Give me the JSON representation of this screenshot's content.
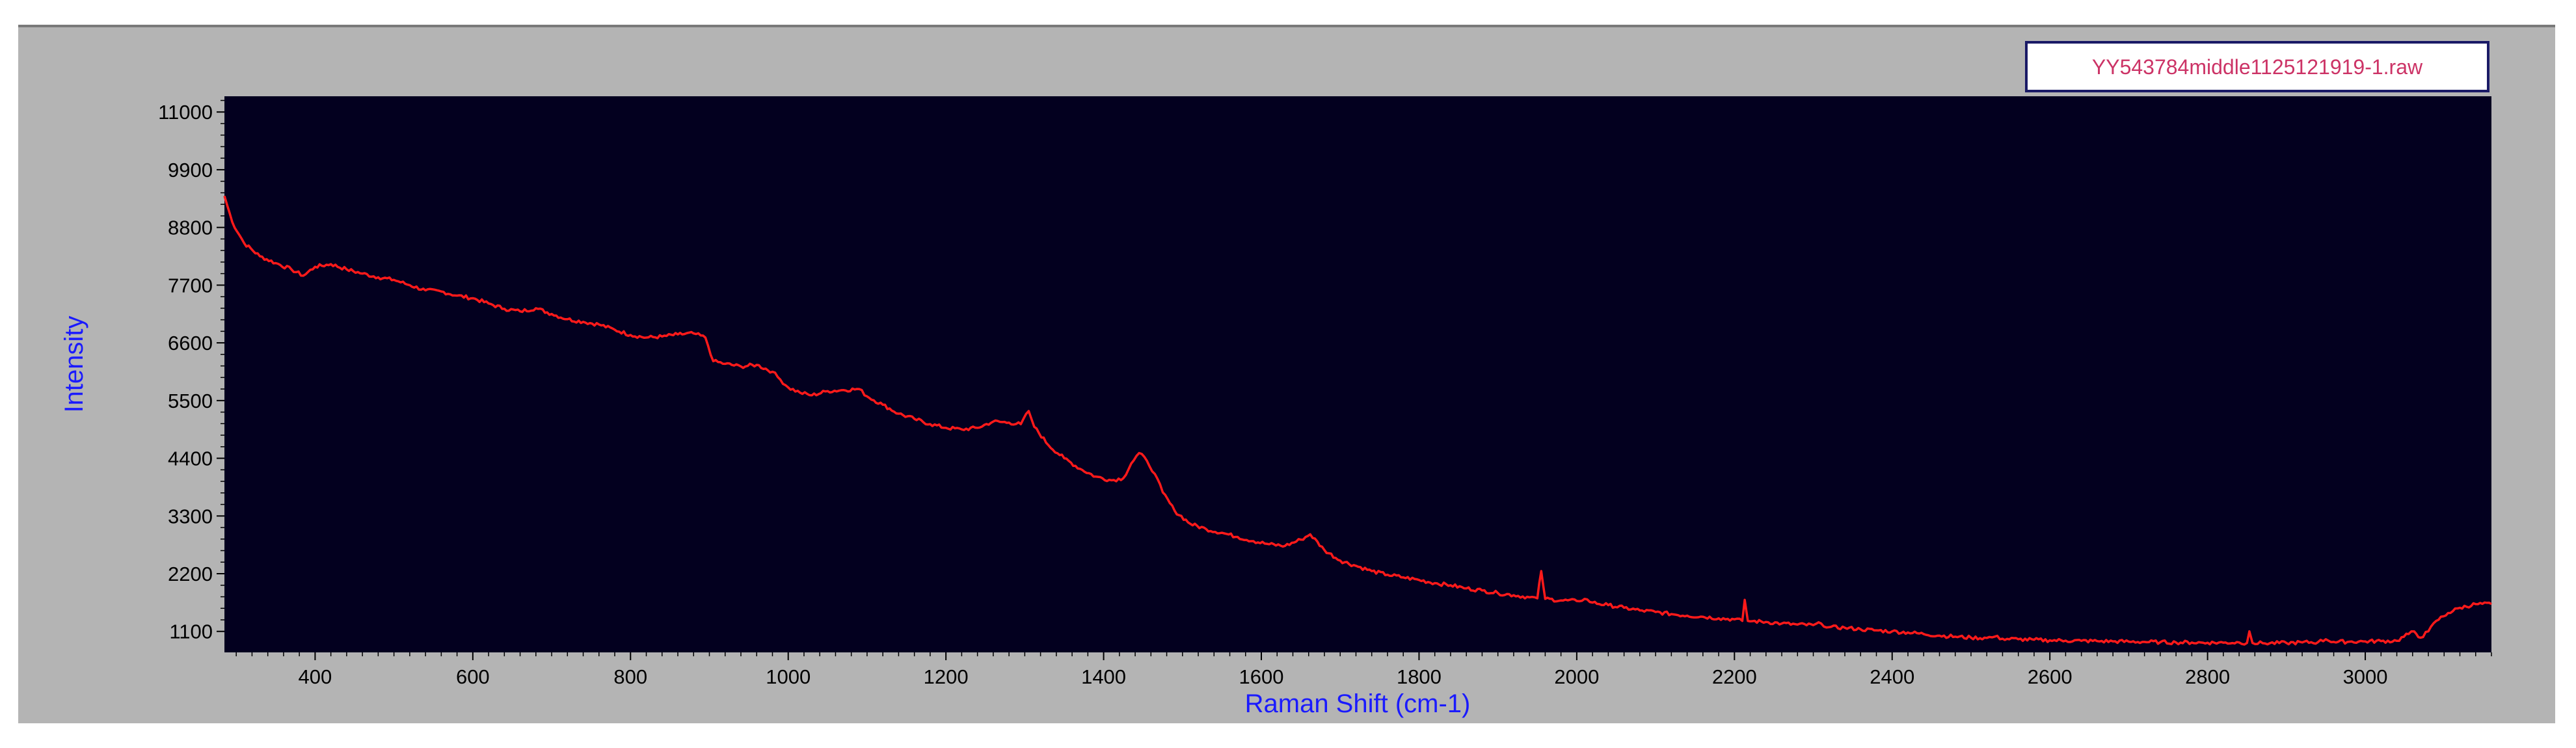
{
  "chart_data": {
    "type": "line",
    "xlabel": "Raman Shift (cm-1)",
    "ylabel": "Intensity",
    "xlim": [
      285,
      3160
    ],
    "ylim": [
      700,
      11300
    ],
    "x_ticks": [
      400,
      600,
      800,
      1000,
      1200,
      1400,
      1600,
      1800,
      2000,
      2200,
      2400,
      2600,
      2800,
      3000
    ],
    "y_ticks": [
      1100,
      2200,
      3300,
      4400,
      5500,
      6600,
      7700,
      8800,
      9900,
      11000
    ],
    "grid": false,
    "legend": "top-right",
    "colors": {
      "plot_background": "#03001f",
      "frame_background": "#b4b4b4",
      "line": "#ff1a1a",
      "axis_title": "#1a1aff",
      "legend_text": "#cc3366",
      "legend_border": "#1a1a66"
    },
    "series": [
      {
        "name": "YY543784middle1125121919-1.raw",
        "points": [
          [
            285,
            9400
          ],
          [
            295,
            8900
          ],
          [
            310,
            8500
          ],
          [
            330,
            8250
          ],
          [
            350,
            8120
          ],
          [
            370,
            8000
          ],
          [
            385,
            7880
          ],
          [
            400,
            8050
          ],
          [
            420,
            8100
          ],
          [
            440,
            8000
          ],
          [
            460,
            7920
          ],
          [
            480,
            7850
          ],
          [
            500,
            7800
          ],
          [
            520,
            7700
          ],
          [
            540,
            7600
          ],
          [
            560,
            7580
          ],
          [
            580,
            7500
          ],
          [
            600,
            7450
          ],
          [
            620,
            7350
          ],
          [
            640,
            7250
          ],
          [
            660,
            7200
          ],
          [
            680,
            7260
          ],
          [
            700,
            7150
          ],
          [
            720,
            7050
          ],
          [
            740,
            7000
          ],
          [
            760,
            6950
          ],
          [
            780,
            6850
          ],
          [
            800,
            6750
          ],
          [
            820,
            6700
          ],
          [
            840,
            6720
          ],
          [
            860,
            6760
          ],
          [
            880,
            6780
          ],
          [
            895,
            6700
          ],
          [
            905,
            6250
          ],
          [
            920,
            6200
          ],
          [
            940,
            6150
          ],
          [
            960,
            6180
          ],
          [
            980,
            6050
          ],
          [
            990,
            5900
          ],
          [
            1000,
            5750
          ],
          [
            1015,
            5650
          ],
          [
            1030,
            5600
          ],
          [
            1050,
            5680
          ],
          [
            1070,
            5700
          ],
          [
            1090,
            5720
          ],
          [
            1100,
            5580
          ],
          [
            1120,
            5420
          ],
          [
            1140,
            5250
          ],
          [
            1160,
            5150
          ],
          [
            1180,
            5050
          ],
          [
            1200,
            4980
          ],
          [
            1220,
            4950
          ],
          [
            1240,
            4980
          ],
          [
            1260,
            5100
          ],
          [
            1280,
            5080
          ],
          [
            1295,
            5050
          ],
          [
            1305,
            5300
          ],
          [
            1312,
            5000
          ],
          [
            1330,
            4650
          ],
          [
            1350,
            4400
          ],
          [
            1370,
            4200
          ],
          [
            1390,
            4050
          ],
          [
            1410,
            3980
          ],
          [
            1425,
            4020
          ],
          [
            1435,
            4300
          ],
          [
            1445,
            4500
          ],
          [
            1455,
            4350
          ],
          [
            1465,
            4100
          ],
          [
            1475,
            3750
          ],
          [
            1490,
            3400
          ],
          [
            1510,
            3150
          ],
          [
            1530,
            3050
          ],
          [
            1550,
            2980
          ],
          [
            1570,
            2900
          ],
          [
            1590,
            2820
          ],
          [
            1610,
            2760
          ],
          [
            1630,
            2730
          ],
          [
            1650,
            2850
          ],
          [
            1662,
            2950
          ],
          [
            1680,
            2650
          ],
          [
            1700,
            2450
          ],
          [
            1720,
            2350
          ],
          [
            1740,
            2250
          ],
          [
            1760,
            2180
          ],
          [
            1780,
            2130
          ],
          [
            1800,
            2080
          ],
          [
            1820,
            2020
          ],
          [
            1840,
            1980
          ],
          [
            1860,
            1920
          ],
          [
            1880,
            1880
          ],
          [
            1900,
            1830
          ],
          [
            1920,
            1790
          ],
          [
            1940,
            1750
          ],
          [
            1950,
            1730
          ],
          [
            1955,
            2250
          ],
          [
            1960,
            1720
          ],
          [
            1980,
            1690
          ],
          [
            2000,
            1680
          ],
          [
            2010,
            1720
          ],
          [
            2020,
            1650
          ],
          [
            2040,
            1600
          ],
          [
            2060,
            1550
          ],
          [
            2080,
            1500
          ],
          [
            2100,
            1470
          ],
          [
            2120,
            1430
          ],
          [
            2140,
            1400
          ],
          [
            2160,
            1380
          ],
          [
            2180,
            1350
          ],
          [
            2200,
            1330
          ],
          [
            2210,
            1300
          ],
          [
            2213,
            1700
          ],
          [
            2217,
            1300
          ],
          [
            2240,
            1280
          ],
          [
            2260,
            1250
          ],
          [
            2280,
            1230
          ],
          [
            2300,
            1220
          ],
          [
            2310,
            1250
          ],
          [
            2320,
            1180
          ],
          [
            2340,
            1170
          ],
          [
            2360,
            1140
          ],
          [
            2380,
            1120
          ],
          [
            2400,
            1100
          ],
          [
            2420,
            1080
          ],
          [
            2440,
            1050
          ],
          [
            2460,
            1020
          ],
          [
            2480,
            1000
          ],
          [
            2500,
            980
          ],
          [
            2520,
            975
          ],
          [
            2530,
            1000
          ],
          [
            2540,
            960
          ],
          [
            2560,
            950
          ],
          [
            2580,
            940
          ],
          [
            2600,
            930
          ],
          [
            2620,
            925
          ],
          [
            2640,
            920
          ],
          [
            2660,
            915
          ],
          [
            2680,
            910
          ],
          [
            2700,
            905
          ],
          [
            2720,
            900
          ],
          [
            2740,
            895
          ],
          [
            2760,
            890
          ],
          [
            2780,
            888
          ],
          [
            2800,
            885
          ],
          [
            2820,
            885
          ],
          [
            2840,
            890
          ],
          [
            2850,
            880
          ],
          [
            2853,
            1100
          ],
          [
            2857,
            880
          ],
          [
            2870,
            875
          ],
          [
            2900,
            880
          ],
          [
            2920,
            890
          ],
          [
            2940,
            895
          ],
          [
            2950,
            950
          ],
          [
            2960,
            900
          ],
          [
            2980,
            905
          ],
          [
            3000,
            910
          ],
          [
            3020,
            915
          ],
          [
            3040,
            920
          ],
          [
            3055,
            1050
          ],
          [
            3062,
            1100
          ],
          [
            3070,
            980
          ],
          [
            3080,
            1100
          ],
          [
            3090,
            1300
          ],
          [
            3105,
            1450
          ],
          [
            3120,
            1550
          ],
          [
            3140,
            1620
          ],
          [
            3160,
            1620
          ]
        ]
      }
    ]
  }
}
